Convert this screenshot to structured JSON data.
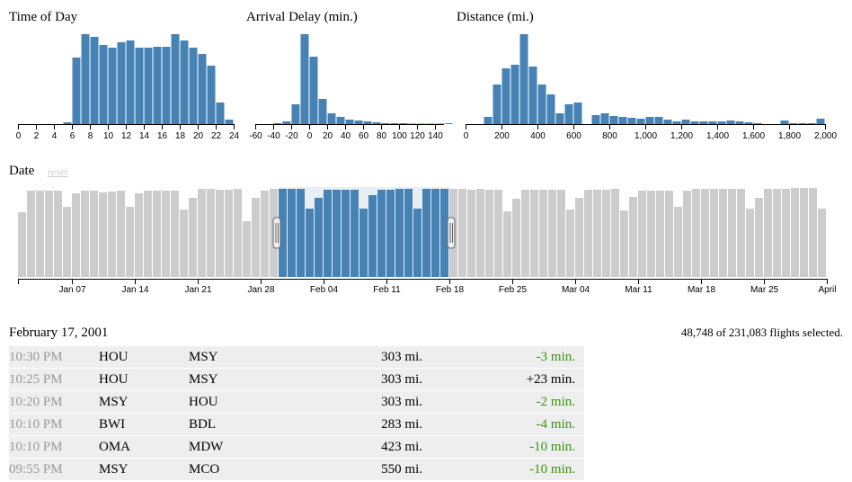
{
  "charts": {
    "time_of_day": {
      "title": "Time of Day",
      "ticks": [
        "0",
        "2",
        "4",
        "6",
        "8",
        "10",
        "12",
        "14",
        "16",
        "18",
        "20",
        "22",
        "24"
      ]
    },
    "delay": {
      "title": "Arrival Delay (min.)",
      "ticks": [
        "-60",
        "-40",
        "-20",
        "0",
        "20",
        "40",
        "60",
        "80",
        "100",
        "120",
        "140"
      ]
    },
    "distance": {
      "title": "Distance (mi.)",
      "ticks": [
        "0",
        "200",
        "400",
        "600",
        "800",
        "1,000",
        "1,200",
        "1,400",
        "1,600",
        "1,800",
        "2,000"
      ]
    },
    "date": {
      "title": "Date",
      "reset_label": "reset",
      "ticks": [
        "Jan 07",
        "Jan 14",
        "Jan 21",
        "Jan 28",
        "Feb 04",
        "Feb 11",
        "Feb 18",
        "Feb 25",
        "Mar 04",
        "Mar 11",
        "Mar 18",
        "Mar 25",
        "April"
      ]
    }
  },
  "chart_data": [
    {
      "type": "bar",
      "title": "Time of Day",
      "x": [
        0,
        1,
        2,
        3,
        4,
        5,
        6,
        7,
        8,
        9,
        10,
        11,
        12,
        13,
        14,
        15,
        16,
        17,
        18,
        19,
        20,
        21,
        22,
        23
      ],
      "values": [
        0,
        0,
        0,
        0,
        0,
        2,
        74,
        100,
        97,
        88,
        85,
        91,
        93,
        85,
        85,
        86,
        86,
        100,
        93,
        85,
        78,
        65,
        24,
        5
      ],
      "xlim": [
        0,
        24
      ]
    },
    {
      "type": "bar",
      "title": "Arrival Delay (min.)",
      "x": [
        -60,
        -50,
        -40,
        -30,
        -20,
        -10,
        0,
        10,
        20,
        30,
        40,
        50,
        60,
        70,
        80,
        90,
        100,
        110,
        120,
        130,
        140,
        150
      ],
      "values": [
        0,
        0,
        1,
        3,
        22,
        100,
        75,
        28,
        12,
        8,
        5,
        4,
        3,
        2,
        1,
        1,
        1,
        0.5,
        0.5,
        0.5,
        0.5,
        1
      ],
      "xlim": [
        -60,
        150
      ]
    },
    {
      "type": "bar",
      "title": "Distance (mi.)",
      "x": [
        0,
        50,
        100,
        150,
        200,
        250,
        300,
        350,
        400,
        450,
        500,
        550,
        600,
        650,
        700,
        750,
        800,
        850,
        900,
        950,
        1000,
        1050,
        1100,
        1150,
        1200,
        1250,
        1300,
        1350,
        1400,
        1450,
        1500,
        1550,
        1600,
        1650,
        1700,
        1750,
        1800,
        1850,
        1900,
        1950
      ],
      "values": [
        0,
        0,
        8,
        44,
        62,
        66,
        100,
        64,
        44,
        33,
        12,
        22,
        24,
        0,
        10,
        12,
        9,
        8,
        7,
        6,
        8,
        8,
        5,
        3,
        5,
        3,
        3,
        3,
        3,
        4,
        3,
        2,
        1,
        0,
        0,
        4,
        1,
        1,
        1,
        6
      ],
      "xlim": [
        0,
        2000
      ]
    },
    {
      "type": "bar",
      "title": "Date",
      "x_start": "Jan 01",
      "x_end": "Apr 01",
      "values": [
        72,
        96,
        96,
        96,
        96,
        78,
        93,
        96,
        96,
        94,
        95,
        96,
        78,
        93,
        96,
        96,
        96,
        96,
        75,
        88,
        98,
        98,
        97,
        97,
        98,
        62,
        88,
        96,
        98,
        98,
        98,
        98,
        76,
        88,
        97,
        97,
        97,
        97,
        76,
        91,
        97,
        97,
        98,
        98,
        76,
        98,
        98,
        98,
        98,
        98,
        97,
        98,
        97,
        97,
        73,
        87,
        97,
        97,
        97,
        97,
        97,
        75,
        88,
        97,
        97,
        97,
        98,
        74,
        89,
        96,
        96,
        96,
        96,
        78,
        96,
        98,
        98,
        98,
        98,
        98,
        98,
        76,
        88,
        98,
        98,
        98,
        99,
        99,
        99,
        76
      ],
      "selection": [
        "Jan 30",
        "Feb 18"
      ]
    }
  ],
  "status": {
    "selected_text": "48,748 of 231,083 flights selected."
  },
  "flights": {
    "date_heading": "February 17, 2001",
    "rows": [
      {
        "time": "10:30 PM",
        "origin": "HOU",
        "dest": "MSY",
        "distance": "303 mi.",
        "delay": "-3 min.",
        "early": true
      },
      {
        "time": "10:25 PM",
        "origin": "HOU",
        "dest": "MSY",
        "distance": "303 mi.",
        "delay": "+23 min.",
        "early": false
      },
      {
        "time": "10:20 PM",
        "origin": "MSY",
        "dest": "HOU",
        "distance": "303 mi.",
        "delay": "-2 min.",
        "early": true
      },
      {
        "time": "10:10 PM",
        "origin": "BWI",
        "dest": "BDL",
        "distance": "283 mi.",
        "delay": "-4 min.",
        "early": true
      },
      {
        "time": "10:10 PM",
        "origin": "OMA",
        "dest": "MDW",
        "distance": "423 mi.",
        "delay": "-10 min.",
        "early": true
      },
      {
        "time": "09:55 PM",
        "origin": "MSY",
        "dest": "MCO",
        "distance": "550 mi.",
        "delay": "-10 min.",
        "early": true
      }
    ]
  },
  "colors": {
    "bar_selected": "#4682b4",
    "bar_unselected": "#cccccc",
    "brush_fill": "#e8eef4",
    "early_delay": "#3a9410"
  }
}
